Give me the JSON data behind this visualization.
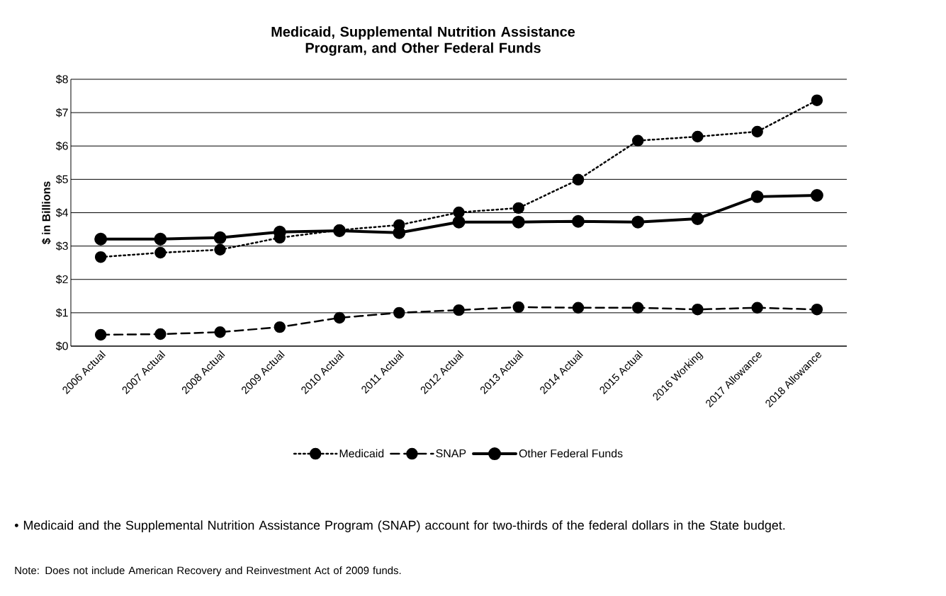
{
  "chart_data": {
    "type": "line",
    "title": "Medicaid, Supplemental Nutrition Assistance Program, and Other Federal Funds",
    "ylabel": "$ in Billions",
    "categories": [
      "2006 Actual",
      "2007 Actual",
      "2008 Actual",
      "2009 Actual",
      "2010 Actual",
      "2011 Actual",
      "2012 Actual",
      "2013 Actual",
      "2014 Actual",
      "2015 Actual",
      "2016 Working",
      "2017 Allowance",
      "2018 Allowance"
    ],
    "series": [
      {
        "name": "Medicaid",
        "color": "#000000",
        "line_style": "dotted",
        "values": [
          2.67,
          2.8,
          2.89,
          3.25,
          3.48,
          3.63,
          4.01,
          4.14,
          4.99,
          6.16,
          6.28,
          6.43,
          7.37
        ]
      },
      {
        "name": "SNAP",
        "color": "#000000",
        "line_style": "dashed",
        "values": [
          0.34,
          0.36,
          0.42,
          0.57,
          0.85,
          1.0,
          1.08,
          1.17,
          1.15,
          1.15,
          1.1,
          1.15,
          1.1
        ]
      },
      {
        "name": "Other Federal Funds",
        "color": "#000000",
        "line_style": "solid",
        "values": [
          3.21,
          3.21,
          3.25,
          3.42,
          3.46,
          3.4,
          3.72,
          3.72,
          3.74,
          3.72,
          3.82,
          4.48,
          4.52
        ]
      }
    ],
    "ylim": [
      0,
      8
    ],
    "yticks": [
      {
        "value": 0,
        "label": "$0"
      },
      {
        "value": 1,
        "label": "$1"
      },
      {
        "value": 2,
        "label": "$2"
      },
      {
        "value": 3,
        "label": "$3"
      },
      {
        "value": 4,
        "label": "$4"
      },
      {
        "value": 5,
        "label": "$5"
      },
      {
        "value": 6,
        "label": "$6"
      },
      {
        "value": 7,
        "label": "$7"
      },
      {
        "value": 8,
        "label": "$8"
      }
    ],
    "grid": "y",
    "legend": "bottom",
    "marker": "circle",
    "annotations": [
      "• Medicaid and the Supplemental Nutrition Assistance Program (SNAP) account for two-thirds of the federal dollars in the State budget.",
      "Note:  Does not include American Recovery and Reinvestment Act of 2009 funds."
    ]
  }
}
